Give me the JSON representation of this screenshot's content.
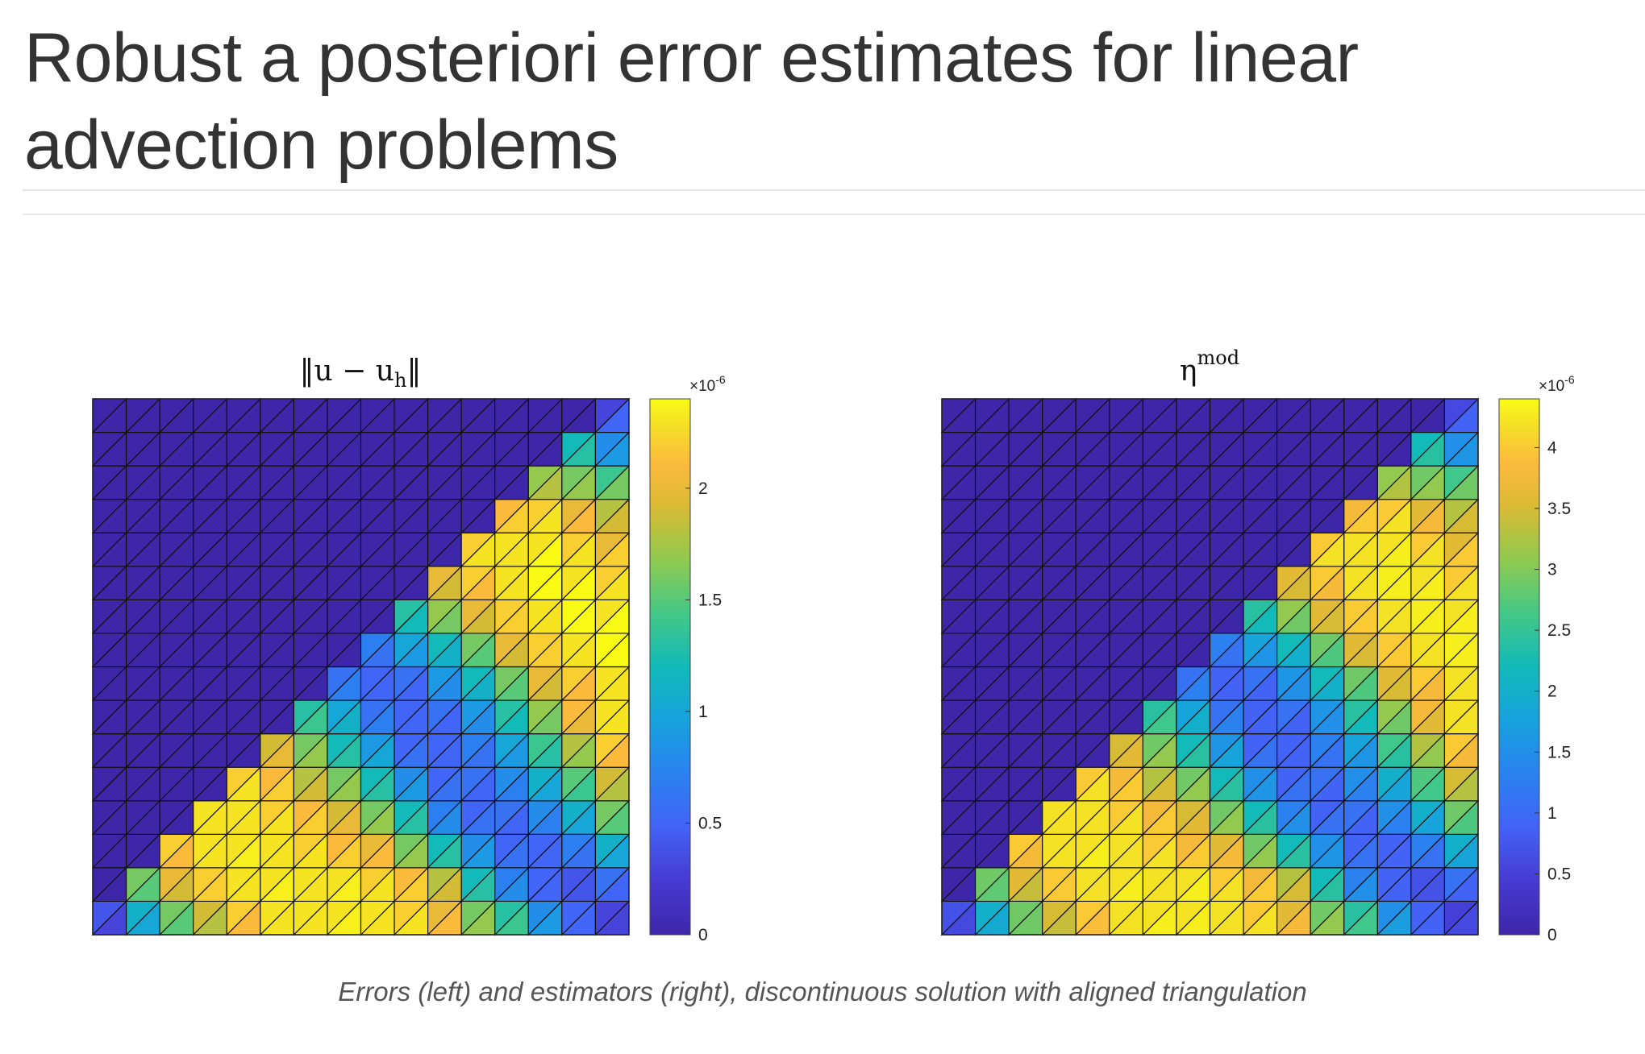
{
  "page": {
    "title": "Robust a posteriori error estimates for linear advection problems",
    "caption": "Errors (left) and estimators (right), discontinuous solution with aligned triangulation"
  },
  "chart_data": [
    {
      "type": "heatmap",
      "title": "‖u − u_h‖",
      "title_main": "‖u − u",
      "title_sub": "h",
      "title_end": "‖",
      "grid": "16x16 squares split diagonally (lower-left to upper-right), 512 triangles",
      "colormap": "parula",
      "clim": [
        0,
        2.4e-06
      ],
      "colorbar": {
        "exponent_label": "×10",
        "exponent": "-6",
        "ticks": [
          0,
          0.5,
          1,
          1.5,
          2
        ],
        "tick_labels": [
          "0",
          "0.5",
          "1",
          "1.5",
          "2"
        ]
      },
      "values_unit": "1e-6",
      "values_lower_triangles": [
        [
          0.3,
          1.0,
          1.5,
          1.8,
          2.1,
          2.3,
          2.3,
          2.35,
          2.3,
          2.3,
          2.1,
          1.7,
          1.4,
          0.9,
          0.5,
          0.3
        ],
        [
          0,
          1.5,
          1.9,
          2.2,
          2.3,
          2.35,
          2.3,
          2.35,
          2.3,
          2.2,
          1.9,
          1.3,
          0.8,
          0.5,
          0.4,
          0.5
        ],
        [
          0,
          0,
          2.1,
          2.3,
          2.35,
          2.3,
          2.3,
          2.2,
          2.1,
          1.7,
          1.3,
          0.9,
          0.6,
          0.5,
          0.6,
          1.0
        ],
        [
          0,
          0,
          0,
          2.3,
          2.3,
          2.3,
          2.2,
          2.0,
          1.7,
          1.3,
          0.8,
          0.6,
          0.5,
          0.7,
          1.0,
          1.5
        ],
        [
          0,
          0,
          0,
          0,
          2.3,
          2.2,
          1.9,
          1.7,
          1.3,
          0.9,
          0.6,
          0.5,
          0.7,
          1.0,
          1.4,
          1.8
        ],
        [
          0,
          0,
          0,
          0,
          0,
          2.0,
          1.7,
          1.3,
          1.0,
          0.6,
          0.5,
          0.6,
          0.9,
          1.3,
          1.7,
          2.1
        ],
        [
          0,
          0,
          0,
          0,
          0,
          0,
          1.4,
          1.1,
          0.7,
          0.5,
          0.5,
          0.8,
          1.2,
          1.6,
          2.0,
          2.3
        ],
        [
          0,
          0,
          0,
          0,
          0,
          0,
          0,
          0.7,
          0.5,
          0.5,
          0.8,
          1.1,
          1.5,
          1.9,
          2.1,
          2.3
        ],
        [
          0,
          0,
          0,
          0,
          0,
          0,
          0,
          0,
          0.6,
          0.9,
          1.1,
          1.5,
          1.9,
          2.2,
          2.3,
          2.4
        ],
        [
          0,
          0,
          0,
          0,
          0,
          0,
          0,
          0,
          0,
          1.2,
          1.6,
          1.9,
          2.2,
          2.3,
          2.4,
          2.4
        ],
        [
          0,
          0,
          0,
          0,
          0,
          0,
          0,
          0,
          0,
          0,
          1.9,
          2.1,
          2.3,
          2.4,
          2.4,
          2.3
        ],
        [
          0,
          0,
          0,
          0,
          0,
          0,
          0,
          0,
          0,
          0,
          0,
          2.3,
          2.3,
          2.4,
          2.3,
          2.2
        ],
        [
          0,
          0,
          0,
          0,
          0,
          0,
          0,
          0,
          0,
          0,
          0,
          0,
          2.2,
          2.3,
          2.1,
          1.9
        ],
        [
          0,
          0,
          0,
          0,
          0,
          0,
          0,
          0,
          0,
          0,
          0,
          0,
          0,
          1.8,
          1.7,
          1.6
        ],
        [
          0,
          0,
          0,
          0,
          0,
          0,
          0,
          0,
          0,
          0,
          0,
          0,
          0,
          0,
          1.3,
          0.9
        ],
        [
          0,
          0,
          0,
          0,
          0,
          0,
          0,
          0,
          0,
          0,
          0,
          0,
          0,
          0,
          0,
          0.5
        ]
      ],
      "values_upper_triangles": [
        [
          0.4,
          1.1,
          1.6,
          1.9,
          2.2,
          2.3,
          2.3,
          2.3,
          2.3,
          2.2,
          2.0,
          1.6,
          1.3,
          0.8,
          0.5,
          0.3
        ],
        [
          0,
          1.6,
          2.0,
          2.2,
          2.3,
          2.3,
          2.3,
          2.3,
          2.2,
          2.1,
          1.8,
          1.2,
          0.7,
          0.5,
          0.4,
          0.6
        ],
        [
          0,
          0,
          2.2,
          2.3,
          2.3,
          2.3,
          2.2,
          2.1,
          2.0,
          1.6,
          1.2,
          0.8,
          0.5,
          0.5,
          0.7,
          1.1
        ],
        [
          0,
          0,
          0,
          2.3,
          2.3,
          2.2,
          2.1,
          1.9,
          1.6,
          1.2,
          0.7,
          0.5,
          0.6,
          0.8,
          1.1,
          1.6
        ],
        [
          0,
          0,
          0,
          0,
          2.2,
          2.1,
          1.8,
          1.6,
          1.2,
          0.8,
          0.5,
          0.6,
          0.8,
          1.1,
          1.5,
          1.9
        ],
        [
          0,
          0,
          0,
          0,
          0,
          1.9,
          1.6,
          1.2,
          0.9,
          0.5,
          0.5,
          0.7,
          1.0,
          1.4,
          1.8,
          2.2
        ],
        [
          0,
          0,
          0,
          0,
          0,
          0,
          1.3,
          1.0,
          0.6,
          0.5,
          0.6,
          0.9,
          1.3,
          1.7,
          2.1,
          2.3
        ],
        [
          0,
          0,
          0,
          0,
          0,
          0,
          0,
          0.6,
          0.5,
          0.6,
          0.9,
          1.2,
          1.6,
          2.0,
          2.2,
          2.3
        ],
        [
          0,
          0,
          0,
          0,
          0,
          0,
          0,
          0,
          0.7,
          1.0,
          1.2,
          1.6,
          2.0,
          2.2,
          2.3,
          2.4
        ],
        [
          0,
          0,
          0,
          0,
          0,
          0,
          0,
          0,
          0,
          1.3,
          1.7,
          2.0,
          2.2,
          2.3,
          2.4,
          2.3
        ],
        [
          0,
          0,
          0,
          0,
          0,
          0,
          0,
          0,
          0,
          0,
          2.0,
          2.2,
          2.3,
          2.4,
          2.3,
          2.2
        ],
        [
          0,
          0,
          0,
          0,
          0,
          0,
          0,
          0,
          0,
          0,
          0,
          2.2,
          2.3,
          2.3,
          2.2,
          2.0
        ],
        [
          0,
          0,
          0,
          0,
          0,
          0,
          0,
          0,
          0,
          0,
          0,
          0,
          2.1,
          2.2,
          2.0,
          1.8
        ],
        [
          0,
          0,
          0,
          0,
          0,
          0,
          0,
          0,
          0,
          0,
          0,
          0,
          0,
          1.7,
          1.6,
          1.4
        ],
        [
          0,
          0,
          0,
          0,
          0,
          0,
          0,
          0,
          0,
          0,
          0,
          0,
          0,
          0,
          1.2,
          0.8
        ],
        [
          0,
          0,
          0,
          0,
          0,
          0,
          0,
          0,
          0,
          0,
          0,
          0,
          0,
          0,
          0,
          0.3
        ]
      ]
    },
    {
      "type": "heatmap",
      "title": "η^mod",
      "title_main": "η",
      "title_sup": "mod",
      "grid": "16x16 squares split diagonally (lower-left to upper-right), 512 triangles",
      "colormap": "parula",
      "clim": [
        0,
        4.4e-06
      ],
      "colorbar": {
        "exponent_label": "×10",
        "exponent": "-6",
        "ticks": [
          0,
          0.5,
          1,
          1.5,
          2,
          2.5,
          3,
          3.5,
          4
        ],
        "tick_labels": [
          "0",
          "0.5",
          "1",
          "1.5",
          "2",
          "2.5",
          "3",
          "3.5",
          "4"
        ]
      },
      "values_unit": "1e-6",
      "values_lower_triangles": [
        [
          0.6,
          1.9,
          2.9,
          3.4,
          3.9,
          4.2,
          4.3,
          4.3,
          4.2,
          4.2,
          3.8,
          3.1,
          2.6,
          1.7,
          0.9,
          0.6
        ],
        [
          0,
          2.8,
          3.4,
          4.0,
          4.2,
          4.3,
          4.2,
          4.3,
          4.2,
          4.0,
          3.5,
          2.4,
          1.5,
          0.9,
          0.7,
          0.9
        ],
        [
          0,
          0,
          3.8,
          4.2,
          4.3,
          4.2,
          4.2,
          4.0,
          3.8,
          3.1,
          2.4,
          1.6,
          1.1,
          0.9,
          1.1,
          1.8
        ],
        [
          0,
          0,
          0,
          4.2,
          4.2,
          4.2,
          4.0,
          3.6,
          3.1,
          2.4,
          1.5,
          1.1,
          0.9,
          1.3,
          1.8,
          2.7
        ],
        [
          0,
          0,
          0,
          0,
          4.2,
          4.0,
          3.5,
          3.1,
          2.4,
          1.6,
          1.1,
          0.9,
          1.3,
          1.8,
          2.6,
          3.3
        ],
        [
          0,
          0,
          0,
          0,
          0,
          3.6,
          3.1,
          2.4,
          1.8,
          1.1,
          0.9,
          1.1,
          1.6,
          2.4,
          3.1,
          3.8
        ],
        [
          0,
          0,
          0,
          0,
          0,
          0,
          2.6,
          2.0,
          1.3,
          0.9,
          0.9,
          1.5,
          2.2,
          2.9,
          3.6,
          4.2
        ],
        [
          0,
          0,
          0,
          0,
          0,
          0,
          0,
          1.3,
          0.9,
          0.9,
          1.5,
          2.0,
          2.7,
          3.5,
          3.8,
          4.2
        ],
        [
          0,
          0,
          0,
          0,
          0,
          0,
          0,
          0,
          1.1,
          1.6,
          2.0,
          2.7,
          3.5,
          4.0,
          4.2,
          4.3
        ],
        [
          0,
          0,
          0,
          0,
          0,
          0,
          0,
          0,
          0,
          2.2,
          2.9,
          3.5,
          4.0,
          4.2,
          4.3,
          4.3
        ],
        [
          0,
          0,
          0,
          0,
          0,
          0,
          0,
          0,
          0,
          0,
          3.5,
          3.8,
          4.2,
          4.3,
          4.3,
          4.2
        ],
        [
          0,
          0,
          0,
          0,
          0,
          0,
          0,
          0,
          0,
          0,
          0,
          4.2,
          4.2,
          4.3,
          4.2,
          4.0
        ],
        [
          0,
          0,
          0,
          0,
          0,
          0,
          0,
          0,
          0,
          0,
          0,
          0,
          4.0,
          4.2,
          3.8,
          3.5
        ],
        [
          0,
          0,
          0,
          0,
          0,
          0,
          0,
          0,
          0,
          0,
          0,
          0,
          0,
          3.3,
          3.1,
          2.9
        ],
        [
          0,
          0,
          0,
          0,
          0,
          0,
          0,
          0,
          0,
          0,
          0,
          0,
          0,
          0,
          2.4,
          1.6
        ],
        [
          0,
          0,
          0,
          0,
          0,
          0,
          0,
          0,
          0,
          0,
          0,
          0,
          0,
          0,
          0,
          0.9
        ]
      ],
      "values_upper_triangles": [
        [
          0.7,
          2.0,
          2.9,
          3.5,
          4.0,
          4.2,
          4.2,
          4.2,
          4.2,
          4.0,
          3.6,
          2.9,
          2.4,
          1.5,
          0.9,
          0.5
        ],
        [
          0,
          2.9,
          3.6,
          4.0,
          4.2,
          4.2,
          4.2,
          4.2,
          4.0,
          3.8,
          3.3,
          2.2,
          1.3,
          0.9,
          0.7,
          1.1
        ],
        [
          0,
          0,
          4.0,
          4.2,
          4.2,
          4.2,
          4.0,
          3.8,
          3.6,
          2.9,
          2.2,
          1.5,
          0.9,
          0.9,
          1.3,
          2.0
        ],
        [
          0,
          0,
          0,
          4.2,
          4.2,
          4.0,
          3.8,
          3.5,
          2.9,
          2.2,
          1.3,
          0.9,
          1.1,
          1.5,
          2.0,
          2.9
        ],
        [
          0,
          0,
          0,
          0,
          4.0,
          3.8,
          3.3,
          2.9,
          2.2,
          1.5,
          0.9,
          1.1,
          1.5,
          2.0,
          2.7,
          3.5
        ],
        [
          0,
          0,
          0,
          0,
          0,
          3.5,
          2.9,
          2.2,
          1.6,
          0.9,
          0.9,
          1.3,
          1.8,
          2.6,
          3.3,
          4.0
        ],
        [
          0,
          0,
          0,
          0,
          0,
          0,
          2.4,
          1.8,
          1.1,
          0.9,
          1.1,
          1.6,
          2.4,
          3.1,
          3.8,
          4.2
        ],
        [
          0,
          0,
          0,
          0,
          0,
          0,
          0,
          1.1,
          0.9,
          1.1,
          1.6,
          2.2,
          2.9,
          3.6,
          4.0,
          4.2
        ],
        [
          0,
          0,
          0,
          0,
          0,
          0,
          0,
          0,
          1.3,
          1.8,
          2.2,
          2.9,
          3.6,
          4.0,
          4.2,
          4.3
        ],
        [
          0,
          0,
          0,
          0,
          0,
          0,
          0,
          0,
          0,
          2.4,
          3.1,
          3.6,
          4.0,
          4.2,
          4.3,
          4.2
        ],
        [
          0,
          0,
          0,
          0,
          0,
          0,
          0,
          0,
          0,
          0,
          3.6,
          4.0,
          4.2,
          4.3,
          4.2,
          4.0
        ],
        [
          0,
          0,
          0,
          0,
          0,
          0,
          0,
          0,
          0,
          0,
          0,
          4.0,
          4.2,
          4.2,
          4.0,
          3.6
        ],
        [
          0,
          0,
          0,
          0,
          0,
          0,
          0,
          0,
          0,
          0,
          0,
          0,
          3.8,
          4.0,
          3.6,
          3.3
        ],
        [
          0,
          0,
          0,
          0,
          0,
          0,
          0,
          0,
          0,
          0,
          0,
          0,
          0,
          3.1,
          2.9,
          2.6
        ],
        [
          0,
          0,
          0,
          0,
          0,
          0,
          0,
          0,
          0,
          0,
          0,
          0,
          0,
          0,
          2.2,
          1.5
        ],
        [
          0,
          0,
          0,
          0,
          0,
          0,
          0,
          0,
          0,
          0,
          0,
          0,
          0,
          0,
          0,
          0.6
        ]
      ]
    }
  ]
}
